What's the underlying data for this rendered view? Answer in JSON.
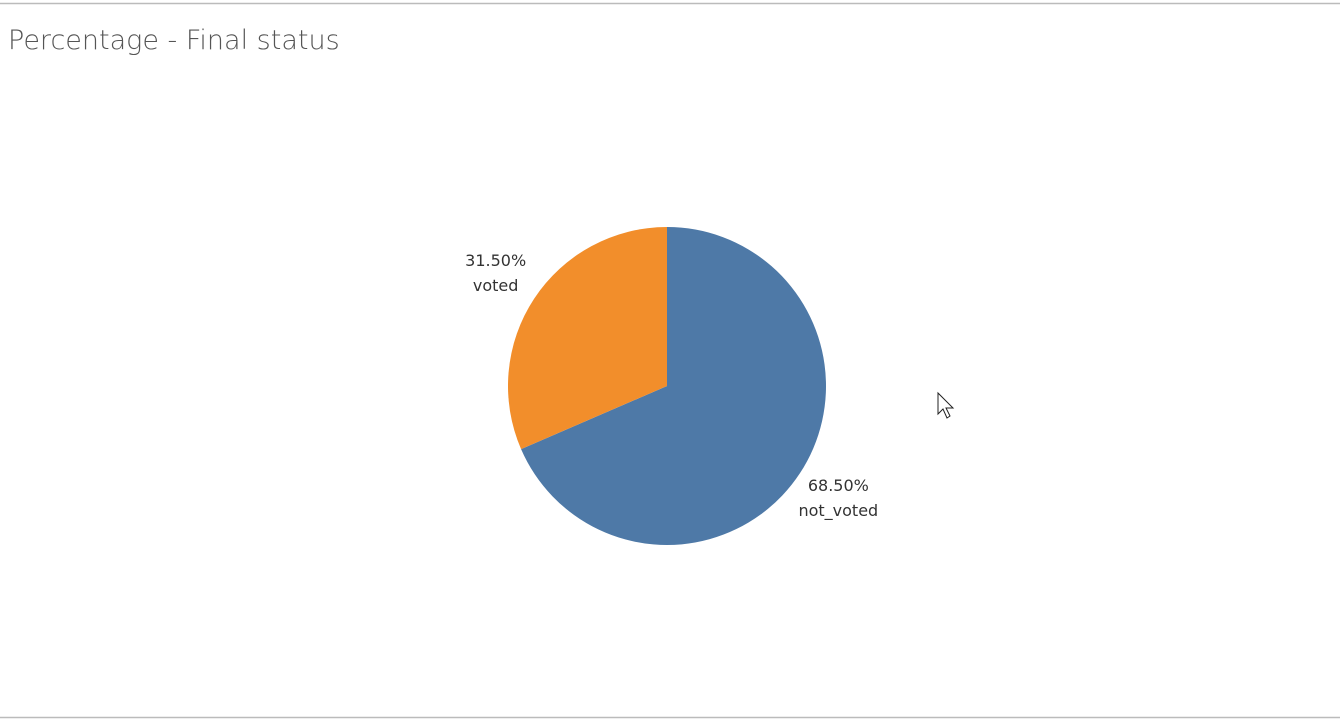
{
  "chart_data": {
    "type": "pie",
    "title": "Percentage - Final status",
    "categories": [
      "not_voted",
      "voted"
    ],
    "values": [
      68.5,
      31.5
    ],
    "value_labels": [
      "68.50%",
      "31.50%"
    ],
    "colors": [
      "#4e79a7",
      "#f28e2b"
    ]
  }
}
